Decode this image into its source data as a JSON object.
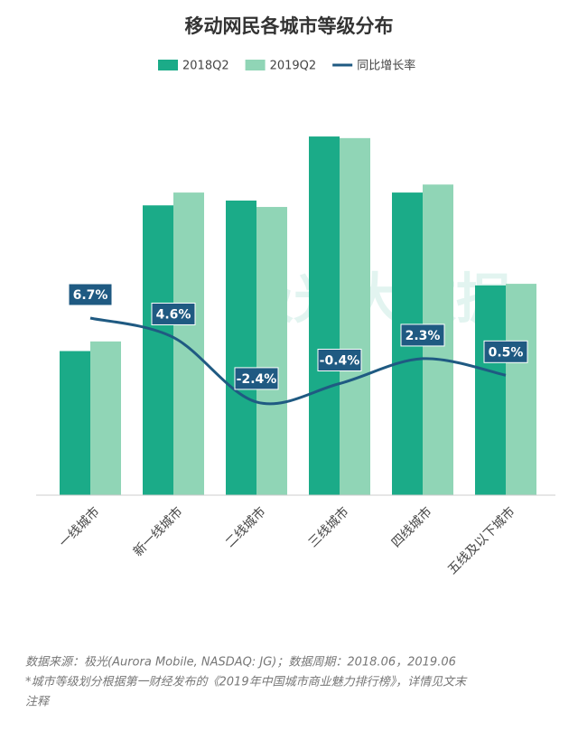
{
  "chart_data": {
    "type": "bar-line",
    "title": "移动网民各城市等级分布",
    "categories": [
      "一线城市",
      "新一线城市",
      "二线城市",
      "三线城市",
      "四线城市",
      "五线及以下城市"
    ],
    "series": [
      {
        "name": "2018Q2",
        "type": "bar",
        "color": "#1bab88",
        "values": [
          9.0,
          18.1,
          18.4,
          22.4,
          18.9,
          13.1
        ]
      },
      {
        "name": "2019Q2",
        "type": "bar",
        "color": "#90d5b6",
        "values": [
          9.6,
          18.9,
          18.0,
          22.3,
          19.4,
          13.2
        ]
      },
      {
        "name": "同比增长率",
        "type": "line",
        "axis": "y2",
        "color": "#1f5a82",
        "values": [
          6.7,
          4.6,
          -2.4,
          -0.4,
          2.3,
          0.5
        ],
        "value_labels": [
          "6.7%",
          "4.6%",
          "-2.4%",
          "-0.4%",
          "2.3%",
          "0.5%"
        ]
      }
    ],
    "ylim": [
      0,
      25
    ],
    "y2lim": [
      -12.5,
      30.9
    ],
    "watermark": "极光大数据"
  },
  "footnotes": [
    "数据来源：极光(Aurora Mobile, NASDAQ: JG)；数据周期：2018.06，2019.06",
    "*城市等级划分根据第一财经发布的《2019年中国城市商业魅力排行榜》，详情见文末",
    "注释"
  ]
}
